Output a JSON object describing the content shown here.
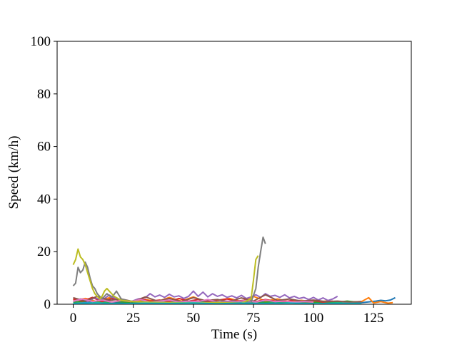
{
  "chart_data": {
    "type": "line",
    "title": "",
    "xlabel": "Time (s)",
    "ylabel": "Speed (km/h)",
    "xlim": [
      -6.7,
      140.7
    ],
    "ylim": [
      0,
      100
    ],
    "xticks": [
      0,
      25,
      50,
      75,
      100,
      125
    ],
    "yticks": [
      0,
      20,
      40,
      60,
      80,
      100
    ],
    "grid": false,
    "legend": "none",
    "series": [
      {
        "color": "#1f77b4",
        "x": [
          0,
          10,
          20,
          30,
          40,
          50,
          60,
          70,
          80,
          90,
          100,
          110,
          120,
          126,
          128,
          130,
          132,
          134
        ],
        "y": [
          0.8,
          1.0,
          0.6,
          0.9,
          0.7,
          1.1,
          0.8,
          0.6,
          0.9,
          0.7,
          1.0,
          0.8,
          0.6,
          1.2,
          1.5,
          1.3,
          1.6,
          2.5
        ]
      },
      {
        "color": "#ff7f0e",
        "x": [
          0,
          5,
          10,
          15,
          20,
          25,
          30,
          35,
          40,
          45,
          50,
          55,
          60,
          65,
          70,
          75,
          80,
          85,
          90,
          95,
          100,
          105,
          110,
          115,
          120,
          123,
          125,
          128,
          131,
          133
        ],
        "y": [
          1.5,
          2.2,
          1.0,
          2.5,
          1.2,
          0.8,
          1.8,
          1.0,
          2.6,
          1.2,
          2.8,
          1.0,
          1.5,
          2.2,
          1.0,
          3.0,
          1.2,
          2.0,
          1.0,
          1.5,
          0.8,
          1.2,
          1.0,
          0.8,
          1.0,
          2.5,
          0.5,
          1.0,
          0.4,
          0.6
        ]
      },
      {
        "color": "#2ca02c",
        "x": [
          0,
          6,
          12,
          18,
          24,
          30,
          36,
          42,
          48,
          54,
          60,
          66,
          72,
          78,
          84,
          90,
          96,
          102,
          108,
          114,
          118
        ],
        "y": [
          0.8,
          1.2,
          0.6,
          1.0,
          0.7,
          1.1,
          0.5,
          0.9,
          0.6,
          1.0,
          0.7,
          0.5,
          0.8,
          0.6,
          1.0,
          0.7,
          0.5,
          0.8,
          0.6,
          1.2,
          0.8
        ]
      },
      {
        "color": "#d62728",
        "x": [
          0,
          4,
          8,
          12,
          16,
          20,
          24,
          28,
          32,
          36,
          40,
          44,
          48,
          52,
          56,
          60,
          64,
          68,
          72,
          76,
          80,
          84,
          88,
          92,
          96,
          100,
          104,
          108
        ],
        "y": [
          2.0,
          1.2,
          2.6,
          1.0,
          2.2,
          1.4,
          1.0,
          2.0,
          1.2,
          1.6,
          1.0,
          2.2,
          1.2,
          1.8,
          1.0,
          1.5,
          2.0,
          1.2,
          1.6,
          1.0,
          1.8,
          1.2,
          1.0,
          1.6,
          1.0,
          1.4,
          0.8,
          1.2
        ]
      },
      {
        "color": "#9467bd",
        "x": [
          0,
          3,
          6,
          9,
          12,
          15,
          18,
          21,
          24,
          27,
          30,
          32,
          34,
          36,
          38,
          40,
          42,
          44,
          46,
          48,
          50,
          52,
          54,
          56,
          58,
          60,
          62,
          64,
          66,
          68,
          70,
          72,
          74,
          76,
          78,
          80,
          82,
          84,
          86,
          88,
          90,
          92,
          94,
          96,
          98,
          100,
          102,
          104,
          106,
          108,
          110
        ],
        "y": [
          1.0,
          2.0,
          1.0,
          2.5,
          1.5,
          3.5,
          2.0,
          1.5,
          1.0,
          2.0,
          2.5,
          4.0,
          2.8,
          3.5,
          2.6,
          3.8,
          2.8,
          3.2,
          2.2,
          3.0,
          5.0,
          3.0,
          4.6,
          2.8,
          4.0,
          3.0,
          3.6,
          2.6,
          3.2,
          2.4,
          3.4,
          2.2,
          2.8,
          3.6,
          2.6,
          4.0,
          3.0,
          3.4,
          2.6,
          3.6,
          2.4,
          3.0,
          2.2,
          2.6,
          1.8,
          2.6,
          1.6,
          2.4,
          1.4,
          2.0,
          3.0
        ]
      },
      {
        "color": "#8c564b",
        "x": [
          0,
          5,
          10,
          15,
          20,
          25,
          30,
          35,
          40,
          45,
          50,
          55,
          60,
          65,
          70,
          75,
          80,
          85,
          90,
          95,
          100,
          105,
          110,
          115,
          120
        ],
        "y": [
          2.5,
          1.2,
          3.0,
          1.5,
          2.0,
          1.0,
          2.8,
          1.2,
          2.2,
          1.0,
          2.5,
          1.4,
          1.8,
          1.0,
          2.4,
          1.2,
          3.6,
          1.4,
          2.0,
          1.2,
          1.6,
          1.0,
          1.2,
          0.8,
          1.0
        ]
      },
      {
        "color": "#e377c2",
        "x": [
          0,
          4,
          8,
          12,
          16,
          20,
          24,
          28,
          32,
          36,
          40,
          44,
          48,
          52,
          56,
          60,
          64,
          68,
          72,
          76,
          80,
          84,
          88,
          92,
          96,
          100
        ],
        "y": [
          1.2,
          2.0,
          1.0,
          1.6,
          0.8,
          1.4,
          1.0,
          1.8,
          0.8,
          1.2,
          1.6,
          0.8,
          1.2,
          1.0,
          1.8,
          0.8,
          1.2,
          1.0,
          1.4,
          0.8,
          1.6,
          1.0,
          1.2,
          0.8,
          1.0,
          0.8
        ]
      },
      {
        "color": "#7f7f7f",
        "x": [
          0,
          1,
          2,
          3,
          4,
          5,
          6,
          7,
          8,
          9,
          10,
          11,
          12,
          14,
          16,
          18,
          20,
          22,
          25,
          30,
          40,
          50,
          60,
          70,
          74,
          76,
          77,
          78,
          79,
          80
        ],
        "y": [
          7.0,
          8.0,
          14.0,
          12.0,
          13.0,
          16.0,
          14.0,
          10.0,
          7.0,
          6.0,
          4.0,
          3.0,
          2.0,
          4.0,
          2.5,
          5.0,
          2.0,
          1.5,
          1.0,
          0.8,
          0.6,
          0.5,
          0.8,
          0.6,
          0.8,
          6.0,
          14.0,
          20.0,
          25.5,
          23.0
        ]
      },
      {
        "color": "#bcbd22",
        "x": [
          0,
          1,
          2,
          3,
          4,
          5,
          6,
          7,
          8,
          9,
          10,
          11,
          12,
          13,
          14,
          15,
          16,
          17,
          18,
          20,
          25,
          30,
          40,
          50,
          60,
          70,
          74,
          75,
          76,
          77
        ],
        "y": [
          15.0,
          17.0,
          21.0,
          18.0,
          17.0,
          15.0,
          12.0,
          9.0,
          6.0,
          4.0,
          3.0,
          2.0,
          3.0,
          5.0,
          6.0,
          5.0,
          4.0,
          3.0,
          2.5,
          1.5,
          1.0,
          0.8,
          0.6,
          0.5,
          0.6,
          0.4,
          2.0,
          9.0,
          17.0,
          18.5
        ]
      },
      {
        "color": "#17becf",
        "x": [
          0,
          10,
          20,
          30,
          40,
          50,
          60,
          70,
          80,
          90,
          100,
          110,
          120
        ],
        "y": [
          0.3,
          0.5,
          0.2,
          0.4,
          0.3,
          0.5,
          0.2,
          0.4,
          0.3,
          0.5,
          0.2,
          0.4,
          0.3
        ]
      }
    ]
  }
}
